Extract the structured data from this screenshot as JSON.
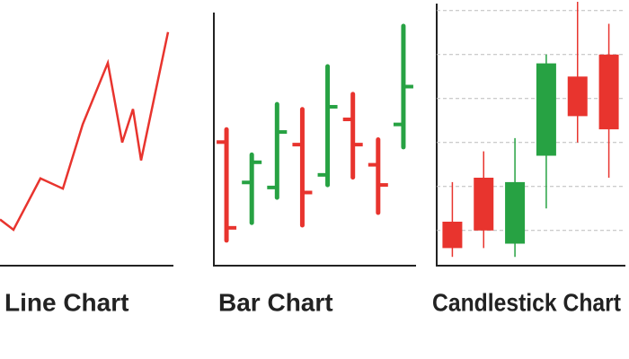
{
  "chart_data": [
    {
      "type": "line",
      "title": "Line Chart",
      "color": "#e8342e",
      "x": [
        0,
        15,
        45,
        70,
        92,
        120,
        136,
        148,
        157,
        187
      ],
      "values": [
        18,
        14,
        34,
        30,
        55,
        79,
        48,
        61,
        41,
        91
      ],
      "xlim": [
        0,
        192
      ],
      "ylim": [
        0,
        100
      ]
    },
    {
      "type": "ohlc",
      "title": "Bar Chart",
      "up_color": "#27a243",
      "down_color": "#e8342e",
      "categories": [
        null,
        null,
        null,
        null,
        null,
        null,
        null,
        null
      ],
      "open": [
        49,
        33,
        31,
        48,
        36,
        58,
        40,
        56
      ],
      "high": [
        54,
        44,
        64,
        62,
        79,
        68,
        50,
        95
      ],
      "low": [
        10,
        17,
        27,
        16,
        32,
        35,
        21,
        47
      ],
      "close": [
        15,
        41,
        53,
        29,
        63,
        48,
        32,
        71
      ],
      "ylim": [
        0,
        100
      ]
    },
    {
      "type": "candlestick",
      "title": "Candlestick Chart",
      "up_color": "#27a243",
      "down_color": "#e8342e",
      "categories": [
        null,
        null,
        null,
        null,
        null,
        null
      ],
      "open": [
        10,
        20,
        5,
        25,
        43,
        48
      ],
      "high": [
        19,
        26,
        29,
        48,
        60,
        55
      ],
      "low": [
        2,
        4,
        2,
        13,
        28,
        20
      ],
      "close": [
        4,
        8,
        19,
        46,
        34,
        31
      ],
      "ylim": [
        0,
        60
      ],
      "yticks": [
        8,
        18,
        28,
        38,
        48,
        58
      ],
      "grid": true
    }
  ]
}
